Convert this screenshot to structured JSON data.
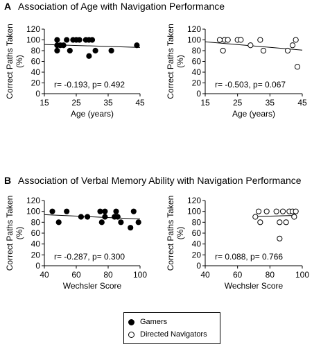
{
  "panels": [
    {
      "letter": "A",
      "title": "Association of Age with Navigation Performance"
    },
    {
      "letter": "B",
      "title": "Association of Verbal Memory Ability with Navigation Performance"
    }
  ],
  "legend": {
    "items": [
      {
        "label": "Gamers",
        "fill": "#000000"
      },
      {
        "label": "Directed Navigators",
        "fill": "#ffffff"
      }
    ]
  },
  "chart_data": [
    {
      "type": "scatter",
      "panel": "A",
      "group": "Gamers",
      "xlabel": "Age (years)",
      "ylabel": "Correct Paths Taken (%)",
      "xlim": [
        15,
        45
      ],
      "ylim": [
        0,
        120
      ],
      "xticks": [
        15,
        25,
        35,
        45
      ],
      "yticks": [
        0,
        20,
        40,
        60,
        80,
        100,
        120
      ],
      "x": [
        19,
        19,
        19,
        20,
        21,
        22,
        23,
        24,
        25,
        26,
        28,
        29,
        29,
        30,
        31,
        36,
        44
      ],
      "y": [
        90,
        80,
        100,
        90,
        90,
        100,
        80,
        100,
        100,
        100,
        100,
        100,
        70,
        100,
        80,
        80,
        90
      ],
      "trend": {
        "y_start": 91.5,
        "y_end": 86.0
      },
      "stat": "r= -0.193, p= 0.492",
      "marker_fill": "#000000"
    },
    {
      "type": "scatter",
      "panel": "A",
      "group": "Directed Navigators",
      "xlabel": "Age (years)",
      "ylabel": "Correct Paths Taken (%)",
      "xlim": [
        15,
        45
      ],
      "ylim": [
        0,
        120
      ],
      "xticks": [
        15,
        25,
        35,
        45
      ],
      "yticks": [
        0,
        20,
        40,
        60,
        80,
        100,
        120
      ],
      "x": [
        19.5,
        20.5,
        21,
        22,
        25,
        26,
        29,
        32,
        33,
        40.5,
        42,
        43,
        43.5
      ],
      "y": [
        100,
        80,
        100,
        100,
        100,
        100,
        90,
        100,
        80,
        80,
        90,
        100,
        50
      ],
      "trend": {
        "y_start": 96.5,
        "y_end": 81.0
      },
      "stat": "r= -0.503, p= 0.067",
      "marker_fill": "#ffffff"
    },
    {
      "type": "scatter",
      "panel": "B",
      "group": "Gamers",
      "xlabel": "Wechsler Score",
      "ylabel": "Correct Paths Taken (%)",
      "xlim": [
        40,
        100
      ],
      "ylim": [
        0,
        120
      ],
      "xticks": [
        40,
        60,
        80,
        100
      ],
      "yticks": [
        0,
        20,
        40,
        60,
        80,
        100,
        120
      ],
      "x": [
        45,
        49,
        54,
        63,
        67,
        75,
        76,
        78,
        78,
        84,
        85,
        86,
        88,
        94,
        96,
        99
      ],
      "y": [
        100,
        80,
        100,
        90,
        90,
        100,
        80,
        100,
        90,
        90,
        100,
        90,
        80,
        70,
        100,
        80
      ],
      "trend": {
        "y_start": 94.0,
        "y_end": 86.0
      },
      "stat": "r= -0.287, p= 0.300",
      "marker_fill": "#000000"
    },
    {
      "type": "scatter",
      "panel": "B",
      "group": "Directed Navigators",
      "xlabel": "Wechsler Score",
      "ylabel": "Correct Paths Taken (%)",
      "xlim": [
        40,
        100
      ],
      "ylim": [
        0,
        120
      ],
      "xticks": [
        40,
        60,
        80,
        100
      ],
      "yticks": [
        0,
        20,
        40,
        60,
        80,
        100,
        120
      ],
      "x": [
        71,
        73,
        74,
        78,
        84,
        86,
        86,
        88,
        90,
        92,
        94,
        95,
        96
      ],
      "y": [
        90,
        100,
        80,
        100,
        100,
        50,
        80,
        100,
        80,
        100,
        100,
        90,
        100
      ],
      "trend_x": [
        71,
        96
      ],
      "trend": {
        "y_start": 90.5,
        "y_end": 92.5
      },
      "stat": "r= 0.088, p= 0.766",
      "marker_fill": "#ffffff"
    }
  ]
}
